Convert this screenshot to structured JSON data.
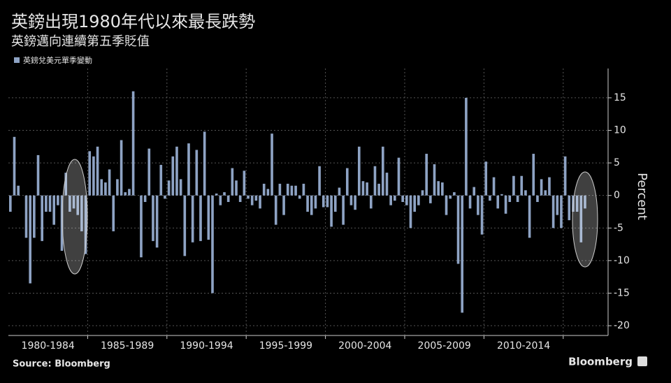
{
  "chart_data": {
    "type": "bar",
    "title": "英鎊出現1980年代以來最長跌勢",
    "subtitle": "英鎊邁向連續第五季貶值",
    "source": "Source:  Bloomberg",
    "brand": "Bloomberg",
    "y_label": "Percent",
    "series_name": "英鎊兌美元單季變動",
    "color": "#8ea3c4",
    "period_labels": [
      "1980-1984",
      "1985-1989",
      "1990-1994",
      "1995-1999",
      "2000-2004",
      "2005-2009",
      "2010-2014"
    ],
    "values": [
      -2.5,
      9,
      1.5,
      0,
      -6.5,
      -13.5,
      -6.5,
      6.2,
      -7,
      -2.5,
      -2.5,
      -4.5,
      -1.5,
      -8.5,
      3.5,
      -2.5,
      -2,
      -3,
      -5.5,
      -9,
      6.8,
      6,
      7.5,
      2.5,
      2,
      4,
      -5.5,
      2.5,
      8.5,
      0.5,
      1,
      16,
      0,
      -9.5,
      -1,
      7.2,
      -7,
      -8,
      4.7,
      -0.5,
      2.3,
      6,
      7.5,
      2.5,
      -9.3,
      8,
      -7.2,
      7,
      -7,
      9.8,
      -6.8,
      -15,
      0.3,
      -1.5,
      0.5,
      -1,
      4.2,
      2.3,
      -1,
      3.8,
      -0.5,
      -1.5,
      -0.8,
      -2,
      1.8,
      1,
      9.5,
      -4.5,
      1.8,
      -3,
      1.8,
      1.5,
      1.5,
      -0.5,
      1.8,
      -2.5,
      -3,
      -2,
      4.5,
      -1.8,
      -1.8,
      -4.8,
      -2.5,
      1.2,
      -4.5,
      4.2,
      -1.5,
      -2.2,
      7.5,
      2.2,
      2,
      -2,
      4.5,
      1.8,
      7.5,
      3.5,
      -1.5,
      -0.8,
      5.8,
      -1,
      -1.5,
      -5,
      -2.5,
      -1.5,
      0.8,
      6.4,
      -1.2,
      4.8,
      2.2,
      2,
      -3,
      -0.5,
      0.5,
      -10.5,
      -18,
      15,
      -2,
      1.3,
      -3,
      -6,
      5.2,
      -0.8,
      2.8,
      -2,
      0.2,
      -2.8,
      -1,
      3,
      -1,
      3,
      0.8,
      -6.5,
      6.4,
      -1,
      2.5,
      0.8,
      2.8,
      -5,
      -3,
      -5,
      6,
      -3.8,
      -2.5,
      -2.5,
      -7.2,
      -2
    ],
    "ylim": [
      -21.5,
      19.5
    ],
    "yticks": [
      -20,
      -15,
      -10,
      -5,
      0,
      5,
      10,
      15
    ],
    "grid": true
  }
}
